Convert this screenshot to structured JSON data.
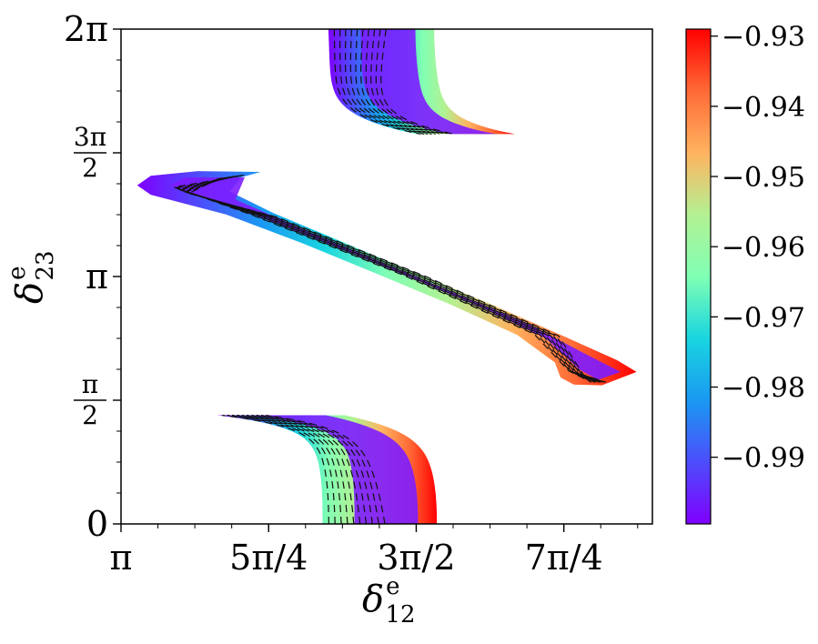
{
  "chart_data": [
    {
      "type": "contour",
      "title": "",
      "xlabel": "δ",
      "xlabel_sup": "e",
      "xlabel_sub": "12",
      "ylabel": "δ",
      "ylabel_sup": "e",
      "ylabel_sub": "23",
      "xlim": [
        3.1416,
        5.969
      ],
      "ylim": [
        0,
        6.2832
      ],
      "x_ticks": [
        {
          "value": 3.1416,
          "label": "π"
        },
        {
          "value": 3.927,
          "label": "5π/4"
        },
        {
          "value": 4.7124,
          "label": "3π/2"
        },
        {
          "value": 5.4978,
          "label": "7π/4"
        }
      ],
      "y_ticks": [
        {
          "value": 0,
          "label": "0"
        },
        {
          "value": 1.5708,
          "label": "π",
          "denominator": "2"
        },
        {
          "value": 3.1416,
          "label": "π"
        },
        {
          "value": 4.7124,
          "label": "3π",
          "denominator": "2"
        },
        {
          "value": 6.2832,
          "label": "2π"
        }
      ],
      "grid": false,
      "regions": [
        {
          "name": "band-upper",
          "shape": "tail-up",
          "y_range": [
            4.95,
            6.2832
          ],
          "x_at_top": [
            4.245,
            4.808
          ]
        },
        {
          "name": "band-diagonal",
          "shape": "diagonal",
          "y_range": [
            1.76,
            4.47
          ],
          "x_range": [
            3.228,
            5.885
          ]
        },
        {
          "name": "band-lower",
          "shape": "tail-down",
          "y_range": [
            0,
            1.38
          ],
          "x_at_bottom": [
            4.214,
            4.822
          ]
        }
      ],
      "contour_levels": [
        -0.932,
        -0.937,
        -0.942,
        -0.947,
        -0.952,
        -0.957,
        -0.962,
        -0.967,
        -0.972,
        -0.977
      ],
      "contour_style": "dashed"
    },
    {
      "type": "colorbar",
      "colormap": "rainbow",
      "range": [
        -0.9995,
        -0.929
      ],
      "ticks": [
        -0.93,
        -0.94,
        -0.95,
        -0.96,
        -0.97,
        -0.98,
        -0.99
      ],
      "tick_labels": [
        "−0.93",
        "−0.94",
        "−0.95",
        "−0.96",
        "−0.97",
        "−0.98",
        "−0.99"
      ]
    }
  ]
}
